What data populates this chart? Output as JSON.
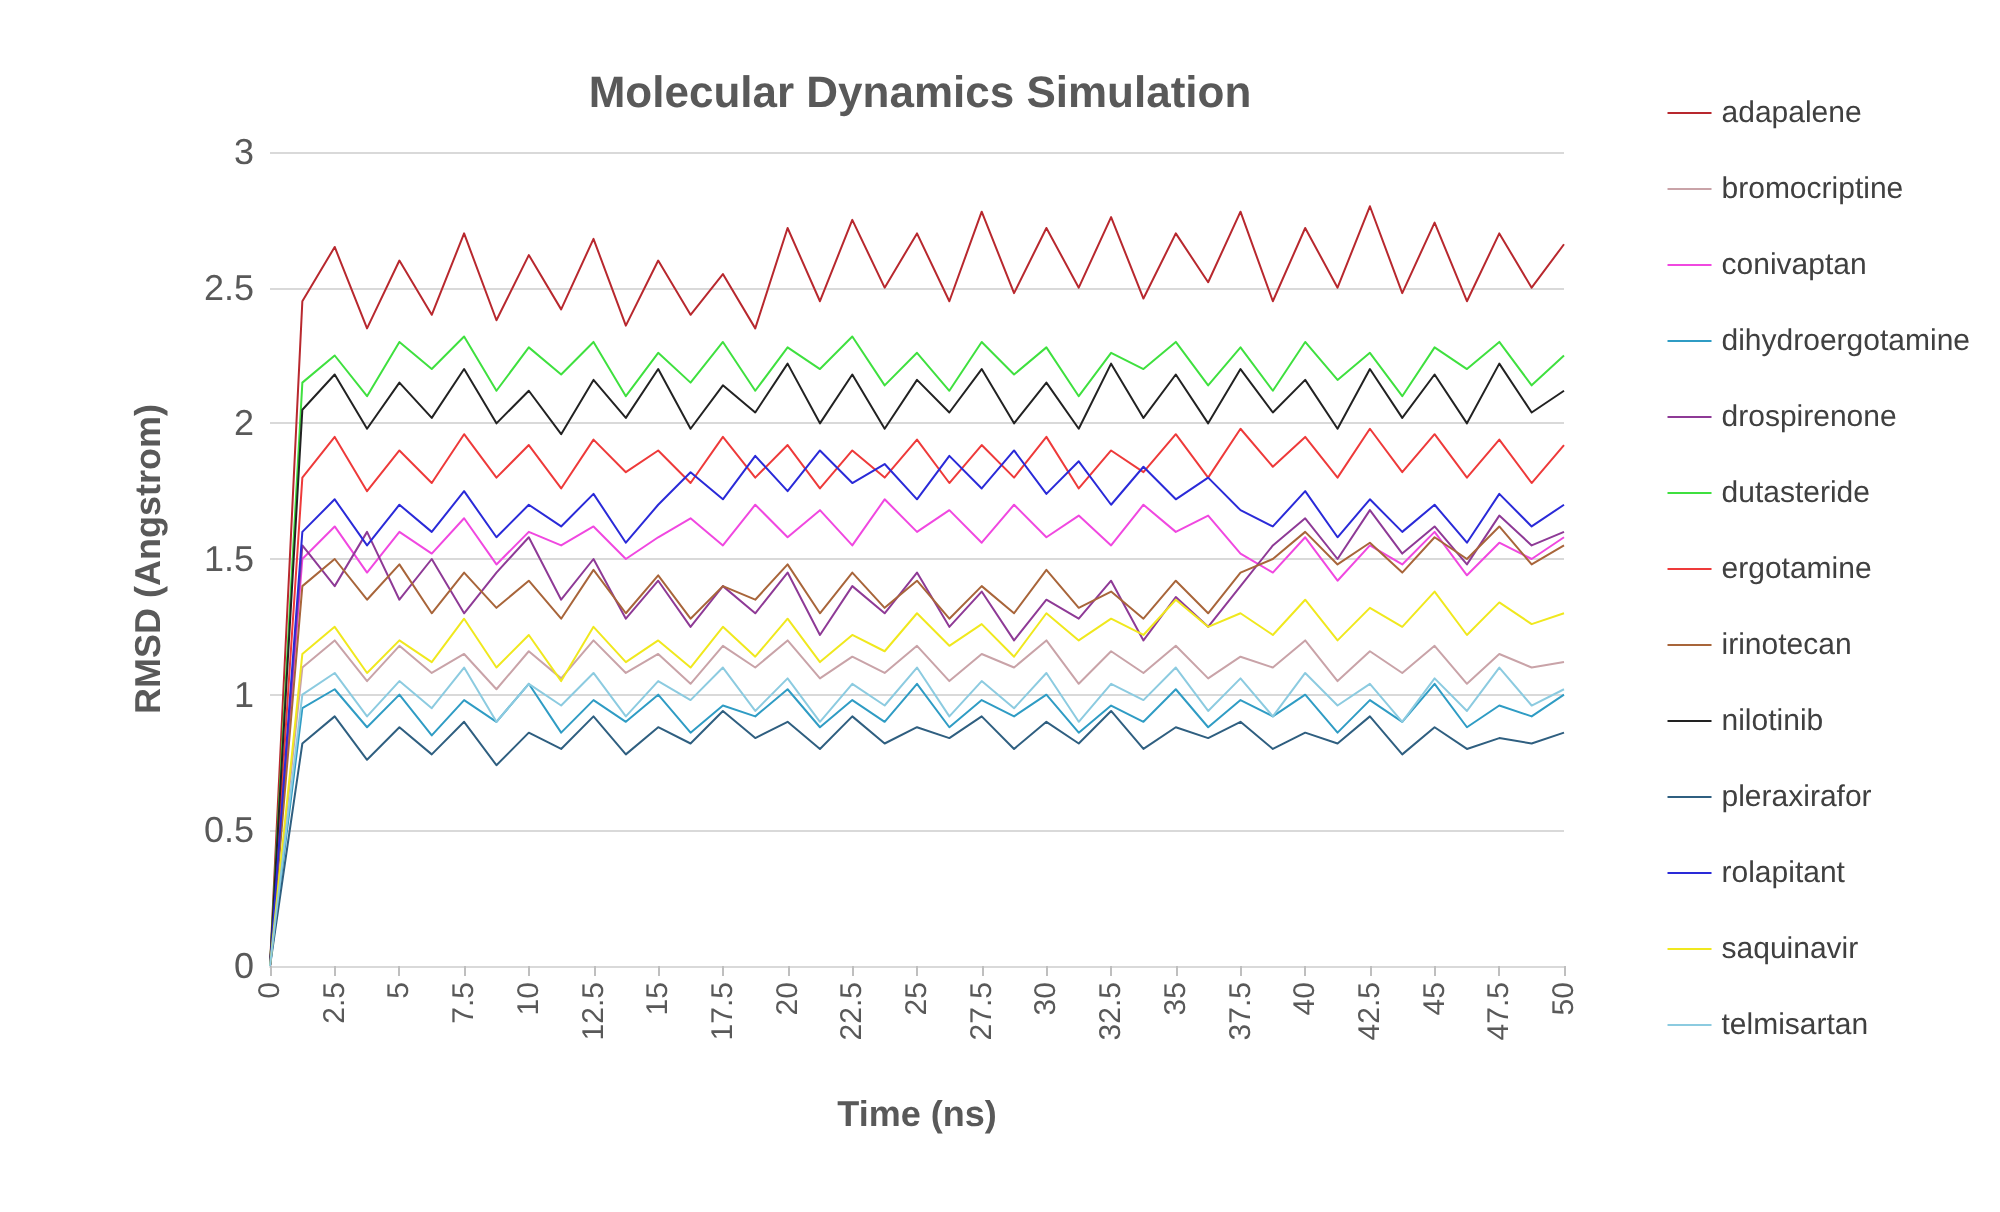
{
  "chart_data": {
    "type": "line",
    "title": "Molecular Dynamics Simulation",
    "xlabel": "Time (ns)",
    "ylabel": "RMSD (Angstrom)",
    "x": [
      0,
      1.25,
      2.5,
      3.75,
      5,
      6.25,
      7.5,
      8.75,
      10,
      11.25,
      12.5,
      13.75,
      15,
      16.25,
      17.5,
      18.75,
      20,
      21.25,
      22.5,
      23.75,
      25,
      26.25,
      27.5,
      28.75,
      30,
      31.25,
      32.5,
      33.75,
      35,
      36.25,
      37.5,
      38.75,
      40,
      41.25,
      42.5,
      43.75,
      45,
      46.25,
      47.5,
      48.75,
      50
    ],
    "xlim": [
      0,
      50
    ],
    "xticks": [
      0,
      2.5,
      5,
      7.5,
      10,
      12.5,
      15,
      17.5,
      20,
      22.5,
      25,
      27.5,
      30,
      32.5,
      35,
      37.5,
      40,
      42.5,
      45,
      47.5,
      50
    ],
    "ylim": [
      0,
      3
    ],
    "yticks": [
      0,
      0.5,
      1,
      1.5,
      2,
      2.5,
      3
    ],
    "grid": "y",
    "legend": "right",
    "marker": "none",
    "line_style": "solid",
    "series": [
      {
        "name": "adapalene",
        "color": "#b8282e",
        "values": [
          0,
          2.45,
          2.65,
          2.35,
          2.6,
          2.4,
          2.7,
          2.38,
          2.62,
          2.42,
          2.68,
          2.36,
          2.6,
          2.4,
          2.55,
          2.35,
          2.72,
          2.45,
          2.75,
          2.5,
          2.7,
          2.45,
          2.78,
          2.48,
          2.72,
          2.5,
          2.76,
          2.46,
          2.7,
          2.52,
          2.78,
          2.45,
          2.72,
          2.5,
          2.8,
          2.48,
          2.74,
          2.45,
          2.7,
          2.5,
          2.66
        ]
      },
      {
        "name": "bromocriptine",
        "color": "#c9a3a8",
        "values": [
          0,
          1.1,
          1.2,
          1.05,
          1.18,
          1.08,
          1.15,
          1.02,
          1.16,
          1.06,
          1.2,
          1.08,
          1.15,
          1.04,
          1.18,
          1.1,
          1.2,
          1.06,
          1.14,
          1.08,
          1.18,
          1.05,
          1.15,
          1.1,
          1.2,
          1.04,
          1.16,
          1.08,
          1.18,
          1.06,
          1.14,
          1.1,
          1.2,
          1.05,
          1.16,
          1.08,
          1.18,
          1.04,
          1.15,
          1.1,
          1.12
        ]
      },
      {
        "name": "conivaptan",
        "color": "#f048e0",
        "values": [
          0,
          1.5,
          1.62,
          1.45,
          1.6,
          1.52,
          1.65,
          1.48,
          1.6,
          1.55,
          1.62,
          1.5,
          1.58,
          1.65,
          1.55,
          1.7,
          1.58,
          1.68,
          1.55,
          1.72,
          1.6,
          1.68,
          1.56,
          1.7,
          1.58,
          1.66,
          1.55,
          1.7,
          1.6,
          1.66,
          1.52,
          1.45,
          1.58,
          1.42,
          1.55,
          1.48,
          1.6,
          1.44,
          1.56,
          1.5,
          1.58
        ]
      },
      {
        "name": "dihydroergotamine",
        "color": "#2f9cc4",
        "values": [
          0,
          0.95,
          1.02,
          0.88,
          1,
          0.85,
          0.98,
          0.9,
          1.04,
          0.86,
          0.98,
          0.9,
          1,
          0.86,
          0.96,
          0.92,
          1.02,
          0.88,
          0.98,
          0.9,
          1.04,
          0.88,
          0.98,
          0.92,
          1,
          0.86,
          0.96,
          0.9,
          1.02,
          0.88,
          0.98,
          0.92,
          1,
          0.86,
          0.98,
          0.9,
          1.04,
          0.88,
          0.96,
          0.92,
          1
        ]
      },
      {
        "name": "drospirenone",
        "color": "#8e3a96",
        "values": [
          0,
          1.55,
          1.4,
          1.6,
          1.35,
          1.5,
          1.3,
          1.45,
          1.58,
          1.35,
          1.5,
          1.28,
          1.42,
          1.25,
          1.4,
          1.3,
          1.45,
          1.22,
          1.4,
          1.3,
          1.45,
          1.25,
          1.38,
          1.2,
          1.35,
          1.28,
          1.42,
          1.2,
          1.36,
          1.25,
          1.4,
          1.55,
          1.65,
          1.5,
          1.68,
          1.52,
          1.62,
          1.48,
          1.66,
          1.55,
          1.6
        ]
      },
      {
        "name": "dutasteride",
        "color": "#3fe03f",
        "values": [
          0,
          2.15,
          2.25,
          2.1,
          2.3,
          2.2,
          2.32,
          2.12,
          2.28,
          2.18,
          2.3,
          2.1,
          2.26,
          2.15,
          2.3,
          2.12,
          2.28,
          2.2,
          2.32,
          2.14,
          2.26,
          2.12,
          2.3,
          2.18,
          2.28,
          2.1,
          2.26,
          2.2,
          2.3,
          2.14,
          2.28,
          2.12,
          2.3,
          2.16,
          2.26,
          2.1,
          2.28,
          2.2,
          2.3,
          2.14,
          2.25
        ]
      },
      {
        "name": "ergotamine",
        "color": "#ee3a3a",
        "values": [
          0,
          1.8,
          1.95,
          1.75,
          1.9,
          1.78,
          1.96,
          1.8,
          1.92,
          1.76,
          1.94,
          1.82,
          1.9,
          1.78,
          1.95,
          1.8,
          1.92,
          1.76,
          1.9,
          1.8,
          1.94,
          1.78,
          1.92,
          1.8,
          1.95,
          1.76,
          1.9,
          1.82,
          1.96,
          1.8,
          1.98,
          1.84,
          1.95,
          1.8,
          1.98,
          1.82,
          1.96,
          1.8,
          1.94,
          1.78,
          1.92
        ]
      },
      {
        "name": "irinotecan",
        "color": "#a8653a",
        "values": [
          0,
          1.4,
          1.5,
          1.35,
          1.48,
          1.3,
          1.45,
          1.32,
          1.42,
          1.28,
          1.46,
          1.3,
          1.44,
          1.28,
          1.4,
          1.35,
          1.48,
          1.3,
          1.45,
          1.32,
          1.42,
          1.28,
          1.4,
          1.3,
          1.46,
          1.32,
          1.38,
          1.28,
          1.42,
          1.3,
          1.45,
          1.5,
          1.6,
          1.48,
          1.56,
          1.45,
          1.58,
          1.5,
          1.62,
          1.48,
          1.55
        ]
      },
      {
        "name": "nilotinib",
        "color": "#222222",
        "values": [
          0,
          2.05,
          2.18,
          1.98,
          2.15,
          2.02,
          2.2,
          2,
          2.12,
          1.96,
          2.16,
          2.02,
          2.2,
          1.98,
          2.14,
          2.04,
          2.22,
          2,
          2.18,
          1.98,
          2.16,
          2.04,
          2.2,
          2,
          2.15,
          1.98,
          2.22,
          2.02,
          2.18,
          2,
          2.2,
          2.04,
          2.16,
          1.98,
          2.2,
          2.02,
          2.18,
          2,
          2.22,
          2.04,
          2.12
        ]
      },
      {
        "name": "pleraxirafor",
        "color": "#2f5f80",
        "values": [
          0,
          0.82,
          0.92,
          0.76,
          0.88,
          0.78,
          0.9,
          0.74,
          0.86,
          0.8,
          0.92,
          0.78,
          0.88,
          0.82,
          0.94,
          0.84,
          0.9,
          0.8,
          0.92,
          0.82,
          0.88,
          0.84,
          0.92,
          0.8,
          0.9,
          0.82,
          0.94,
          0.8,
          0.88,
          0.84,
          0.9,
          0.8,
          0.86,
          0.82,
          0.92,
          0.78,
          0.88,
          0.8,
          0.84,
          0.82,
          0.86
        ]
      },
      {
        "name": "rolapitant",
        "color": "#2a2ad8",
        "values": [
          0,
          1.6,
          1.72,
          1.55,
          1.7,
          1.6,
          1.75,
          1.58,
          1.7,
          1.62,
          1.74,
          1.56,
          1.7,
          1.82,
          1.72,
          1.88,
          1.75,
          1.9,
          1.78,
          1.85,
          1.72,
          1.88,
          1.76,
          1.9,
          1.74,
          1.86,
          1.7,
          1.84,
          1.72,
          1.8,
          1.68,
          1.62,
          1.75,
          1.58,
          1.72,
          1.6,
          1.7,
          1.56,
          1.74,
          1.62,
          1.7
        ]
      },
      {
        "name": "saquinavir",
        "color": "#f0e81e",
        "values": [
          0,
          1.15,
          1.25,
          1.08,
          1.2,
          1.12,
          1.28,
          1.1,
          1.22,
          1.05,
          1.25,
          1.12,
          1.2,
          1.1,
          1.25,
          1.14,
          1.28,
          1.12,
          1.22,
          1.16,
          1.3,
          1.18,
          1.26,
          1.14,
          1.3,
          1.2,
          1.28,
          1.22,
          1.35,
          1.25,
          1.3,
          1.22,
          1.35,
          1.2,
          1.32,
          1.25,
          1.38,
          1.22,
          1.34,
          1.26,
          1.3
        ]
      },
      {
        "name": "telmisartan",
        "color": "#8ccbe0",
        "values": [
          0,
          1,
          1.08,
          0.92,
          1.05,
          0.95,
          1.1,
          0.9,
          1.04,
          0.96,
          1.08,
          0.92,
          1.05,
          0.98,
          1.1,
          0.94,
          1.06,
          0.9,
          1.04,
          0.96,
          1.1,
          0.92,
          1.05,
          0.95,
          1.08,
          0.9,
          1.04,
          0.98,
          1.1,
          0.94,
          1.06,
          0.92,
          1.08,
          0.96,
          1.04,
          0.9,
          1.06,
          0.94,
          1.1,
          0.96,
          1.02
        ]
      }
    ]
  }
}
